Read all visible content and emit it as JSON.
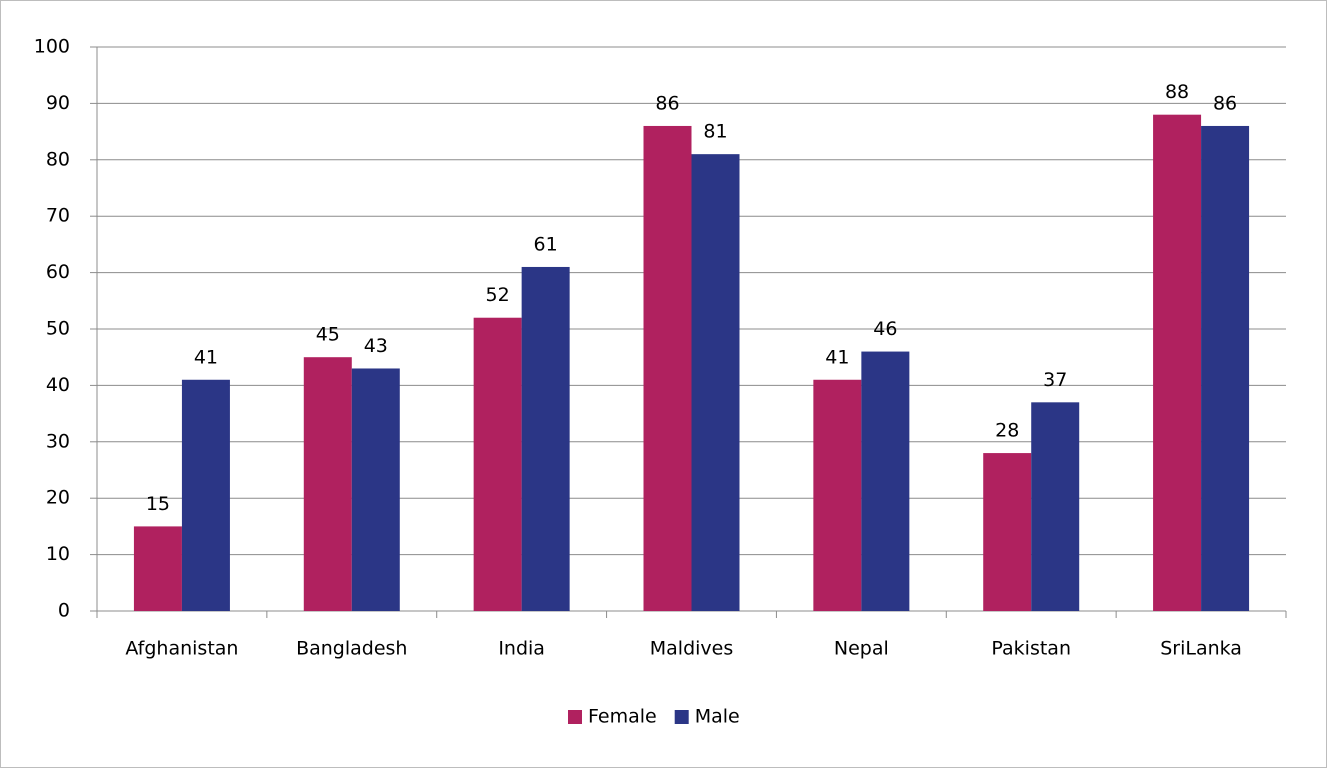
{
  "chart_data": {
    "type": "bar",
    "categories": [
      "Afghanistan",
      "Bangladesh",
      "India",
      "Maldives",
      "Nepal",
      "Pakistan",
      "SriLanka"
    ],
    "series": [
      {
        "name": "Female",
        "color": "#b0215f",
        "values": [
          15,
          45,
          52,
          86,
          41,
          28,
          88
        ]
      },
      {
        "name": "Male",
        "color": "#2b3686",
        "values": [
          41,
          43,
          61,
          81,
          46,
          37,
          86
        ]
      }
    ],
    "ylim": [
      0,
      100
    ],
    "yticks": [
      0,
      10,
      20,
      30,
      40,
      50,
      60,
      70,
      80,
      90,
      100
    ],
    "grid": true,
    "legend": "bottom"
  }
}
